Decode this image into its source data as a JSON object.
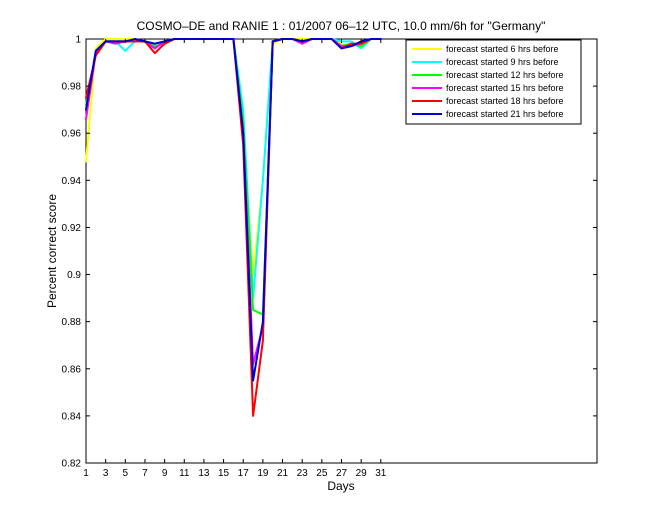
{
  "chart_data": {
    "type": "line",
    "title": "COSMO–DE and RANIE 1 : 01/2007 06–12 UTC, 10.0 mm/6h for \"Germany\"",
    "xlabel": "Days",
    "ylabel": "Percent correct score",
    "xlim": [
      1,
      53
    ],
    "ylim": [
      0.82,
      1.0
    ],
    "xticks": [
      1,
      3,
      5,
      7,
      9,
      11,
      13,
      15,
      17,
      19,
      21,
      23,
      25,
      27,
      29,
      31
    ],
    "yticks": [
      0.82,
      0.84,
      0.86,
      0.88,
      0.9,
      0.92,
      0.94,
      0.96,
      0.98,
      1.0
    ],
    "ytick_labels": [
      "0.82",
      "0.84",
      "0.86",
      "0.88",
      "0.9",
      "0.92",
      "0.94",
      "0.96",
      "0.98",
      "1"
    ],
    "legend_position": "top-right",
    "grid": false,
    "x": [
      1,
      2,
      3,
      4,
      5,
      6,
      7,
      8,
      9,
      10,
      11,
      12,
      13,
      14,
      15,
      16,
      17,
      18,
      19,
      20,
      21,
      22,
      23,
      24,
      25,
      26,
      27,
      28,
      29,
      30,
      31
    ],
    "series": [
      {
        "name": "forecast started 6 hrs before",
        "color": "#ffff00",
        "values": [
          0.948,
          0.996,
          1.0,
          1.0,
          1.0,
          1.0,
          0.999,
          0.998,
          0.999,
          1.0,
          1.0,
          1.0,
          1.0,
          1.0,
          1.0,
          1.0,
          0.96,
          0.9,
          0.94,
          0.998,
          1.0,
          1.0,
          1.0,
          1.0,
          1.0,
          1.0,
          0.998,
          0.997,
          0.998,
          1.0,
          1.0
        ]
      },
      {
        "name": "forecast started 9 hrs before",
        "color": "#00ffff",
        "values": [
          0.97,
          0.995,
          0.999,
          0.999,
          0.995,
          0.999,
          0.999,
          0.998,
          0.999,
          1.0,
          1.0,
          1.0,
          1.0,
          1.0,
          1.0,
          1.0,
          0.97,
          0.89,
          0.94,
          0.999,
          1.0,
          1.0,
          0.999,
          1.0,
          1.0,
          1.0,
          0.999,
          0.999,
          0.996,
          1.0,
          1.0
        ]
      },
      {
        "name": "forecast started 12 hrs before",
        "color": "#00ff00",
        "values": [
          0.972,
          0.994,
          0.999,
          0.999,
          0.999,
          0.999,
          0.999,
          0.997,
          0.998,
          1.0,
          1.0,
          1.0,
          1.0,
          1.0,
          1.0,
          1.0,
          0.965,
          0.885,
          0.883,
          0.999,
          1.0,
          1.0,
          0.999,
          1.0,
          1.0,
          1.0,
          0.997,
          0.998,
          0.997,
          1.0,
          1.0
        ]
      },
      {
        "name": "forecast started 15 hrs before",
        "color": "#ff00ff",
        "values": [
          0.966,
          0.994,
          0.999,
          0.998,
          0.999,
          0.999,
          0.999,
          0.996,
          0.999,
          1.0,
          1.0,
          1.0,
          1.0,
          1.0,
          1.0,
          1.0,
          0.96,
          0.862,
          0.878,
          0.999,
          1.0,
          1.0,
          0.998,
          1.0,
          1.0,
          1.0,
          0.997,
          0.997,
          0.998,
          1.0,
          1.0
        ]
      },
      {
        "name": "forecast started 18 hrs before",
        "color": "#ff0000",
        "values": [
          0.975,
          0.993,
          0.999,
          0.999,
          0.999,
          0.999,
          0.999,
          0.994,
          0.998,
          1.0,
          1.0,
          1.0,
          1.0,
          1.0,
          1.0,
          1.0,
          0.955,
          0.84,
          0.872,
          0.999,
          1.0,
          1.0,
          0.999,
          1.0,
          1.0,
          1.0,
          0.996,
          0.998,
          0.998,
          1.0,
          1.0
        ]
      },
      {
        "name": "forecast started 21 hrs before",
        "color": "#0000cc",
        "values": [
          0.97,
          0.995,
          0.999,
          0.999,
          0.999,
          1.0,
          0.999,
          0.998,
          0.999,
          1.0,
          1.0,
          1.0,
          1.0,
          1.0,
          1.0,
          1.0,
          0.96,
          0.855,
          0.88,
          0.999,
          1.0,
          1.0,
          0.999,
          1.0,
          1.0,
          1.0,
          0.996,
          0.997,
          0.999,
          1.0,
          1.0
        ]
      }
    ]
  }
}
